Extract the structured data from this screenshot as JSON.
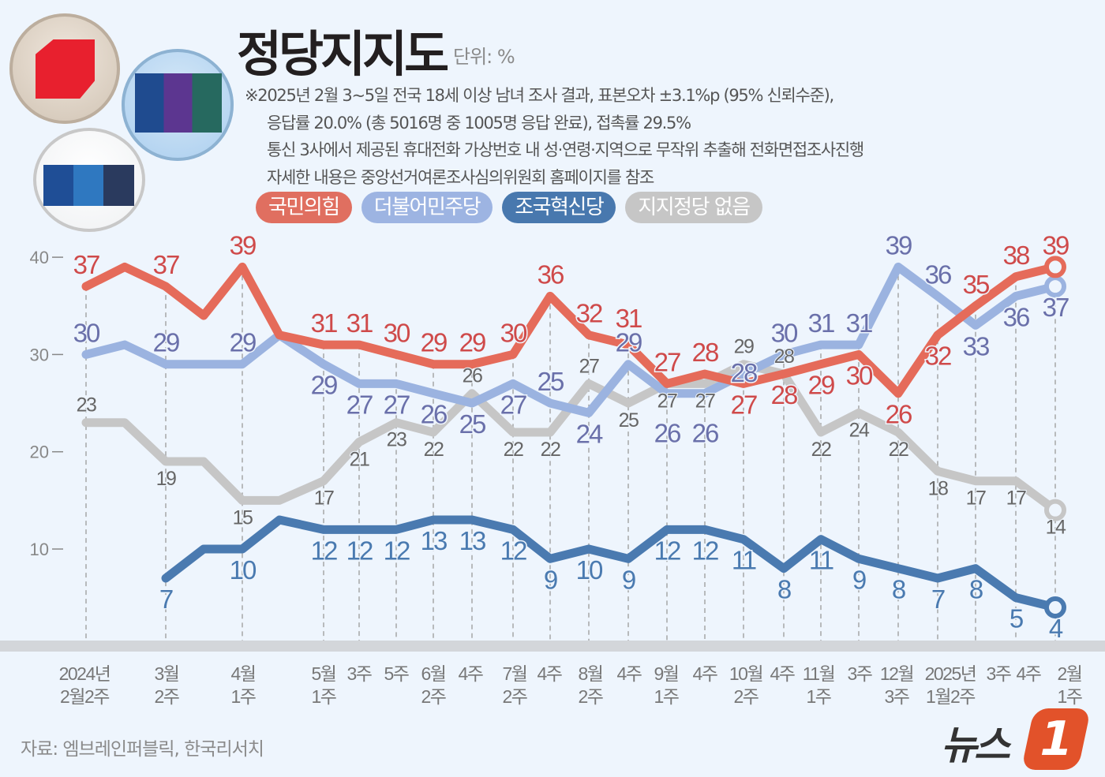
{
  "header": {
    "title": "정당지지도",
    "unit": "단위: %",
    "notes": [
      "※2025년 2월 3~5일 전국 18세 이상 남녀 조사 결과, 표본오차 ±3.1%p (95% 신뢰수준),",
      "응답률 20.0% (총  5016명 중 1005명 응답 완료), 접촉률 29.5%",
      "통신 3사에서 제공된 휴대전화 가상번호 내 성·연령·지역으로 무작위 추출해 전화면접조사진행",
      "자세한 내용은 중앙선거여론조사심의위원회 홈페이지를 참조"
    ]
  },
  "footer": {
    "source": "자료: 엠브레인퍼블릭, 한국리서치",
    "logo_text": "뉴스",
    "logo_mark": "1"
  },
  "chart_data": {
    "type": "line",
    "title": "정당지지도",
    "ylabel": "%",
    "ylim": [
      4,
      40
    ],
    "yticks": [
      "10",
      "20",
      "30",
      "40"
    ],
    "label_hidden_indices": [
      1,
      3,
      5
    ],
    "x_tick_labels": [
      [
        "2024년",
        "2월2주"
      ],
      [
        "3월",
        "2주"
      ],
      [
        "4월",
        "1주"
      ],
      [
        "5월",
        "1주"
      ],
      [
        "3주",
        ""
      ],
      [
        "5주",
        ""
      ],
      [
        "6월",
        "2주"
      ],
      [
        "4주",
        ""
      ],
      [
        "7월",
        "2주"
      ],
      [
        "4주",
        ""
      ],
      [
        "8월",
        "2주"
      ],
      [
        "4주",
        ""
      ],
      [
        "9월",
        "1주"
      ],
      [
        "4주",
        ""
      ],
      [
        "10월",
        "2주"
      ],
      [
        "4주",
        ""
      ],
      [
        "11월",
        "1주"
      ],
      [
        "3주",
        ""
      ],
      [
        "12월",
        "3주"
      ],
      [
        "2025년",
        "1월2주"
      ],
      [
        "3주",
        ""
      ],
      [
        "4주",
        ""
      ],
      [
        "2월",
        "1주"
      ]
    ],
    "series": [
      {
        "name": "지지정당 없음",
        "color": "#c6c6c6",
        "label_color": "#666666",
        "values": [
          23,
          23,
          19,
          19,
          15,
          15,
          17,
          21,
          23,
          22,
          26,
          22,
          22,
          27,
          25,
          27,
          27,
          29,
          28,
          22,
          24,
          22,
          18,
          17,
          17,
          14
        ]
      },
      {
        "name": "조국혁신당",
        "color": "#4a7ab0",
        "label_color": "#4a7ab0",
        "values": [
          null,
          null,
          7,
          10,
          10,
          13,
          12,
          12,
          12,
          13,
          13,
          12,
          9,
          10,
          9,
          12,
          12,
          11,
          8,
          11,
          9,
          8,
          7,
          8,
          5,
          4
        ]
      },
      {
        "name": "더불어민주당",
        "color": "#9bb3e0",
        "label_color": "#6a70aa",
        "values": [
          30,
          31,
          29,
          29,
          29,
          32,
          29,
          27,
          27,
          26,
          25,
          27,
          25,
          24,
          29,
          26,
          26,
          28,
          30,
          31,
          31,
          39,
          36,
          33,
          36,
          37
        ]
      },
      {
        "name": "국민의힘",
        "color": "#e56b5a",
        "label_color": "#cf4a4a",
        "values": [
          37,
          39,
          37,
          34,
          39,
          32,
          31,
          31,
          30,
          29,
          29,
          30,
          36,
          32,
          31,
          27,
          28,
          27,
          28,
          29,
          30,
          26,
          32,
          35,
          38,
          39
        ]
      }
    ],
    "legend": [
      {
        "label": "국민의힘",
        "color": "#e06f60"
      },
      {
        "label": "더불어민주당",
        "color": "#9db4e2"
      },
      {
        "label": "조국혁신당",
        "color": "#4878ae"
      },
      {
        "label": "지지정당 없음",
        "color": "#c6c6c6"
      }
    ]
  }
}
